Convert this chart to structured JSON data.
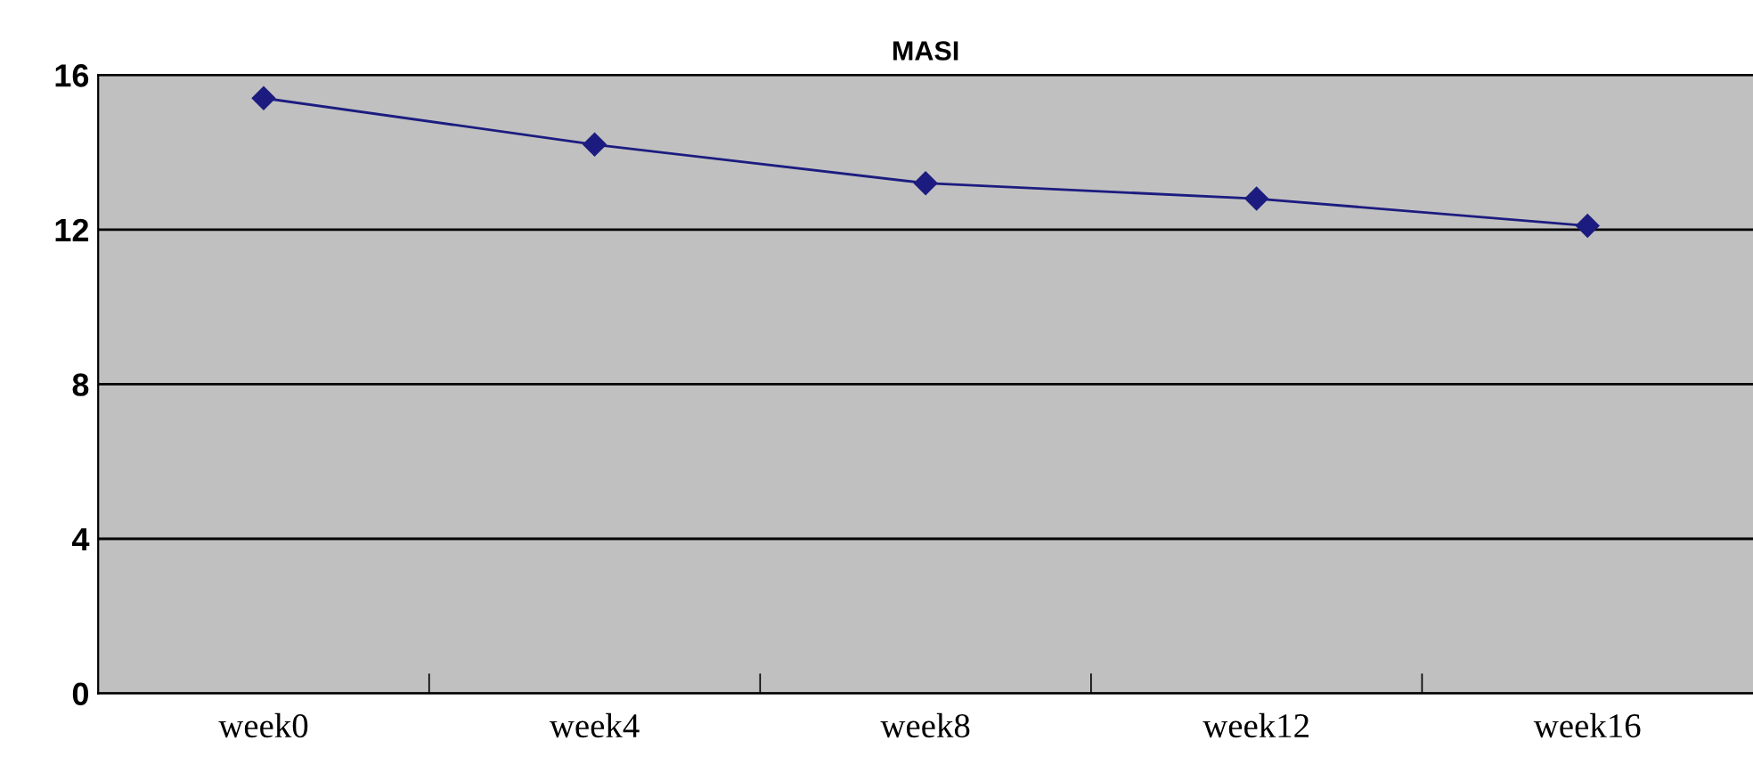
{
  "chart_data": {
    "type": "line",
    "title": "MASI",
    "categories": [
      "week0",
      "week4",
      "week8",
      "week12",
      "week16"
    ],
    "series": [
      {
        "color": "#1c1c80",
        "values": [
          15.4,
          14.2,
          13.2,
          12.8,
          12.1
        ]
      }
    ],
    "ylim": [
      0,
      16
    ],
    "yticks": [
      0,
      4,
      8,
      12,
      16
    ],
    "grid": "y",
    "marker": "diamond",
    "line_style": "solid",
    "legend": false
  }
}
